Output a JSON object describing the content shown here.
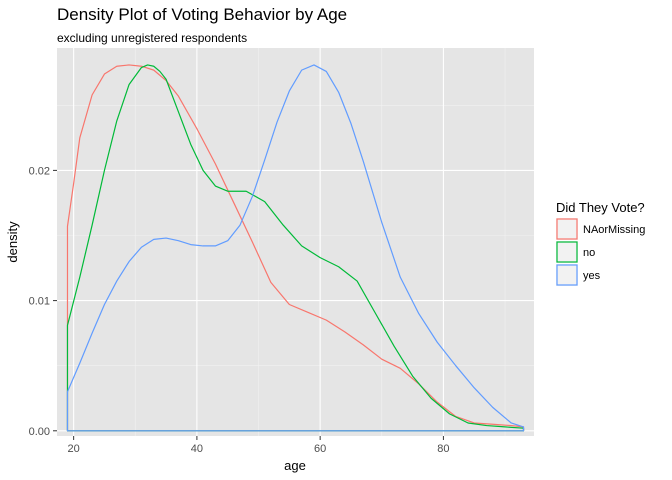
{
  "title": "Density Plot of Voting Behavior by Age",
  "subtitle": "excluding unregistered respondents",
  "chart_data": {
    "type": "area",
    "title": "Density Plot of Voting Behavior by Age",
    "subtitle": "excluding unregistered respondents",
    "xlabel": "age",
    "ylabel": "density",
    "xlim": [
      17.3,
      94.7
    ],
    "ylim": [
      -0.0004,
      0.0294
    ],
    "x_ticks": [
      20,
      40,
      60,
      80
    ],
    "x_tick_labels": [
      "20",
      "40",
      "60",
      "80"
    ],
    "y_ticks": [
      0.0,
      0.01,
      0.02
    ],
    "y_tick_labels": [
      "0.00",
      "0.01",
      "0.02"
    ],
    "grid": true,
    "background": "#e5e5e5",
    "legend": {
      "title": "Did They Vote?",
      "position": "right"
    },
    "series": [
      {
        "name": "NAorMissing",
        "color": "#f8766d",
        "x": [
          19,
          20,
          21,
          23,
          25,
          27,
          29,
          31,
          33,
          35,
          37,
          40,
          43,
          46,
          49,
          52,
          55,
          58,
          61,
          64,
          67,
          70,
          73,
          76,
          79,
          82,
          85,
          88,
          91,
          93
        ],
        "y": [
          0.0157,
          0.019,
          0.0225,
          0.0258,
          0.0274,
          0.028,
          0.0281,
          0.028,
          0.0277,
          0.0269,
          0.0257,
          0.0232,
          0.0205,
          0.0175,
          0.0145,
          0.0114,
          0.0097,
          0.0091,
          0.0085,
          0.0076,
          0.0066,
          0.0055,
          0.0048,
          0.0036,
          0.0022,
          0.0011,
          0.0006,
          0.0005,
          0.0004,
          0.0003
        ]
      },
      {
        "name": "no",
        "color": "#00ba38",
        "x": [
          19,
          21,
          23,
          25,
          27,
          29,
          31,
          32,
          33,
          34,
          35,
          37,
          39,
          41,
          43,
          45,
          48,
          51,
          54,
          57,
          60,
          63,
          66,
          69,
          72,
          75,
          78,
          81,
          84,
          87,
          90,
          93
        ],
        "y": [
          0.0081,
          0.0118,
          0.0158,
          0.02,
          0.0238,
          0.0266,
          0.0279,
          0.0281,
          0.028,
          0.0276,
          0.027,
          0.0245,
          0.022,
          0.02,
          0.0188,
          0.0184,
          0.0184,
          0.0176,
          0.0158,
          0.0142,
          0.0133,
          0.0126,
          0.0115,
          0.009,
          0.0065,
          0.0042,
          0.0025,
          0.0013,
          0.0006,
          0.0004,
          0.0003,
          0.0002
        ]
      },
      {
        "name": "yes",
        "color": "#619cff",
        "x": [
          19,
          21,
          23,
          25,
          27,
          29,
          31,
          33,
          35,
          37,
          39,
          41,
          43,
          45,
          47,
          49,
          51,
          53,
          55,
          57,
          59,
          61,
          63,
          65,
          67,
          70,
          73,
          76,
          79,
          82,
          85,
          88,
          91,
          93
        ],
        "y": [
          0.003,
          0.0052,
          0.0075,
          0.0097,
          0.0115,
          0.013,
          0.0141,
          0.0147,
          0.0148,
          0.0146,
          0.0143,
          0.0142,
          0.0142,
          0.0146,
          0.0158,
          0.018,
          0.0208,
          0.0237,
          0.0261,
          0.0277,
          0.0281,
          0.0276,
          0.026,
          0.0236,
          0.0207,
          0.016,
          0.0118,
          0.009,
          0.0068,
          0.005,
          0.0033,
          0.0018,
          0.0006,
          0.0003
        ]
      }
    ]
  }
}
